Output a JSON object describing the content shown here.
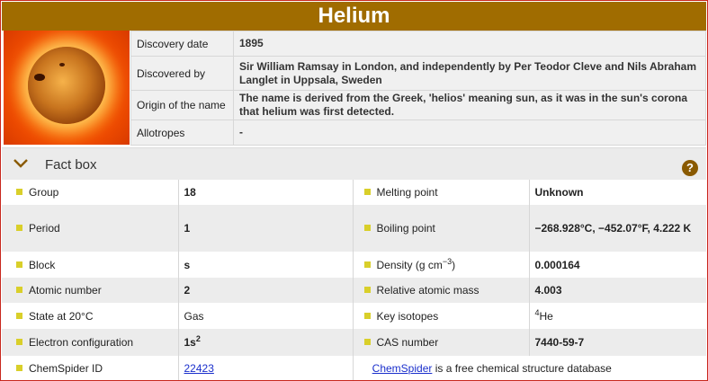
{
  "element": {
    "name": "Helium"
  },
  "info": {
    "rows": [
      {
        "key": "Discovery date",
        "value": "1895"
      },
      {
        "key": "Discovered by",
        "value": "Sir William Ramsay in London, and independently by Per Teodor Cleve and Nils Abraham Langlet in Uppsala, Sweden"
      },
      {
        "key": "Origin of the name",
        "value": "The name is derived from the Greek, 'helios' meaning sun, as it was in the sun's corona that helium was first detected."
      },
      {
        "key": "Allotropes",
        "value": "-"
      }
    ]
  },
  "factbox": {
    "title": "Fact box",
    "help": "?",
    "group_label": "Group",
    "group_value": "18",
    "melting_label": "Melting point",
    "melting_value": "Unknown",
    "period_label": "Period",
    "period_value": "1",
    "boiling_label": "Boiling point",
    "boiling_value": "−268.928°C, −452.07°F, 4.222 K",
    "block_label": "Block",
    "block_value": "s",
    "density_label": "Density (g cm",
    "density_unit_exp": "−3",
    "density_label_end": ")",
    "density_value": "0.000164",
    "atomic_number_label": "Atomic number",
    "atomic_number_value": "2",
    "mass_label": "Relative atomic mass",
    "mass_value": "4.003",
    "state_label": "State at 20°C",
    "state_value": "Gas",
    "isotopes_label": "Key isotopes",
    "isotope_mass": "4",
    "isotope_symbol": "He",
    "electron_label": "Electron configuration",
    "electron_base": "1s",
    "electron_exp": "2",
    "cas_label": "CAS number",
    "cas_value": "7440-59-7",
    "chemspider_label": "ChemSpider ID",
    "chemspider_id": "22423",
    "chemspider_link": "ChemSpider",
    "chemspider_desc": " is a free chemical structure database"
  },
  "colors": {
    "title_bar": "#a06c00",
    "bullet": "#d9cf2a",
    "help_icon": "#8a5a00",
    "border": "#c8281e"
  }
}
